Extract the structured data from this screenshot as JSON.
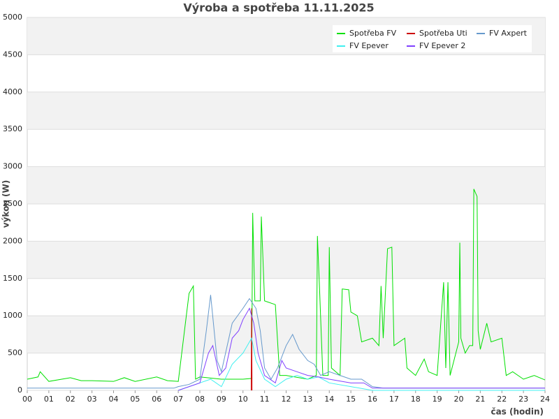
{
  "chart_data": {
    "type": "line",
    "title": "Výroba a spotřeba 11.11.2025",
    "xlabel": "čas (hodin)",
    "ylabel": "výkon (W)",
    "xlim": [
      0,
      24
    ],
    "ylim": [
      0,
      5000
    ],
    "xticks": [
      {
        "value": 0,
        "label": "00"
      },
      {
        "value": 1,
        "label": "01"
      },
      {
        "value": 2,
        "label": "02"
      },
      {
        "value": 3,
        "label": "03"
      },
      {
        "value": 4,
        "label": "04"
      },
      {
        "value": 5,
        "label": "05"
      },
      {
        "value": 6,
        "label": "06"
      },
      {
        "value": 7,
        "label": "07"
      },
      {
        "value": 8,
        "label": "08"
      },
      {
        "value": 9,
        "label": "09"
      },
      10,
      11,
      12,
      13,
      14,
      15,
      16,
      17,
      18,
      19,
      20,
      21,
      22,
      23,
      24
    ],
    "yticks": [
      0,
      500,
      1000,
      1500,
      2000,
      2500,
      3000,
      3500,
      4000,
      4500,
      5000
    ],
    "grid": true,
    "legend": "upper right",
    "series": [
      {
        "name": "Spotřeba FV",
        "color": "#00e000",
        "x": [
          0,
          0.5,
          0.6,
          1,
          2,
          2.5,
          3,
          4,
          4.5,
          5,
          6,
          6.5,
          7,
          7.5,
          7.7,
          7.8,
          8,
          9,
          10,
          10.4,
          10.45,
          10.55,
          10.8,
          10.85,
          11,
          11.5,
          11.7,
          12,
          13,
          13.4,
          13.45,
          13.55,
          13.7,
          13.95,
          14,
          14.1,
          14.5,
          14.6,
          14.9,
          15,
          15.3,
          15.5,
          16,
          16.3,
          16.4,
          16.5,
          16.7,
          16.9,
          17,
          17.5,
          17.6,
          18,
          18.4,
          18.6,
          19,
          19.3,
          19.4,
          19.5,
          19.6,
          20,
          20.05,
          20.1,
          20.3,
          20.5,
          20.65,
          20.7,
          20.85,
          20.9,
          21,
          21.3,
          21.5,
          22,
          22.2,
          22.5,
          23,
          23.5,
          24
        ],
        "values": [
          150,
          180,
          250,
          120,
          170,
          130,
          130,
          120,
          170,
          120,
          180,
          130,
          120,
          1300,
          1400,
          150,
          180,
          150,
          150,
          160,
          2380,
          1200,
          1200,
          2330,
          1200,
          1150,
          200,
          200,
          150,
          200,
          2070,
          1350,
          200,
          200,
          1920,
          300,
          200,
          1360,
          1350,
          1050,
          1000,
          650,
          700,
          600,
          1400,
          700,
          1900,
          1920,
          600,
          700,
          300,
          200,
          420,
          250,
          200,
          1450,
          300,
          1450,
          200,
          650,
          1980,
          700,
          500,
          600,
          600,
          2700,
          2600,
          800,
          550,
          900,
          650,
          700,
          200,
          250,
          150,
          200,
          140
        ]
      },
      {
        "name": "Spotřeba Uti",
        "color": "#cc0000",
        "x": [
          10.38,
          10.4,
          10.42
        ],
        "values": [
          0,
          1100,
          0
        ]
      },
      {
        "name": "FV Axpert",
        "color": "#6699cc",
        "x": [
          0,
          6.8,
          7,
          7.5,
          8,
          8.3,
          8.5,
          8.8,
          9,
          9.5,
          10,
          10.3,
          10.6,
          10.8,
          11,
          11.3,
          11.6,
          12,
          12.3,
          12.6,
          13,
          13.3,
          13.6,
          14,
          14.5,
          15,
          15.5,
          16,
          16.5,
          24
        ],
        "values": [
          30,
          30,
          50,
          80,
          150,
          800,
          1280,
          400,
          250,
          900,
          1100,
          1230,
          1100,
          800,
          300,
          150,
          300,
          600,
          750,
          550,
          400,
          350,
          200,
          250,
          200,
          150,
          150,
          50,
          30,
          30
        ]
      },
      {
        "name": "FV Epever",
        "color": "#40f0f0",
        "x": [
          7,
          8,
          8.5,
          9,
          9.5,
          10,
          10.4,
          10.6,
          11,
          11.5,
          12,
          12.5,
          13,
          13.5,
          14,
          15,
          16,
          24
        ],
        "values": [
          0,
          100,
          150,
          50,
          350,
          500,
          700,
          400,
          150,
          50,
          150,
          200,
          150,
          180,
          100,
          50,
          0,
          0
        ]
      },
      {
        "name": "FV Epever 2",
        "color": "#8040ff",
        "x": [
          7,
          8,
          8.4,
          8.6,
          8.9,
          9.2,
          9.5,
          9.8,
          10,
          10.3,
          10.5,
          10.7,
          11,
          11.5,
          11.8,
          12,
          12.5,
          13,
          13.5,
          14,
          15,
          15.6,
          16,
          24
        ],
        "values": [
          0,
          100,
          500,
          600,
          200,
          300,
          700,
          800,
          950,
          1100,
          900,
          500,
          200,
          100,
          400,
          300,
          250,
          200,
          180,
          150,
          100,
          100,
          30,
          30
        ]
      }
    ]
  }
}
